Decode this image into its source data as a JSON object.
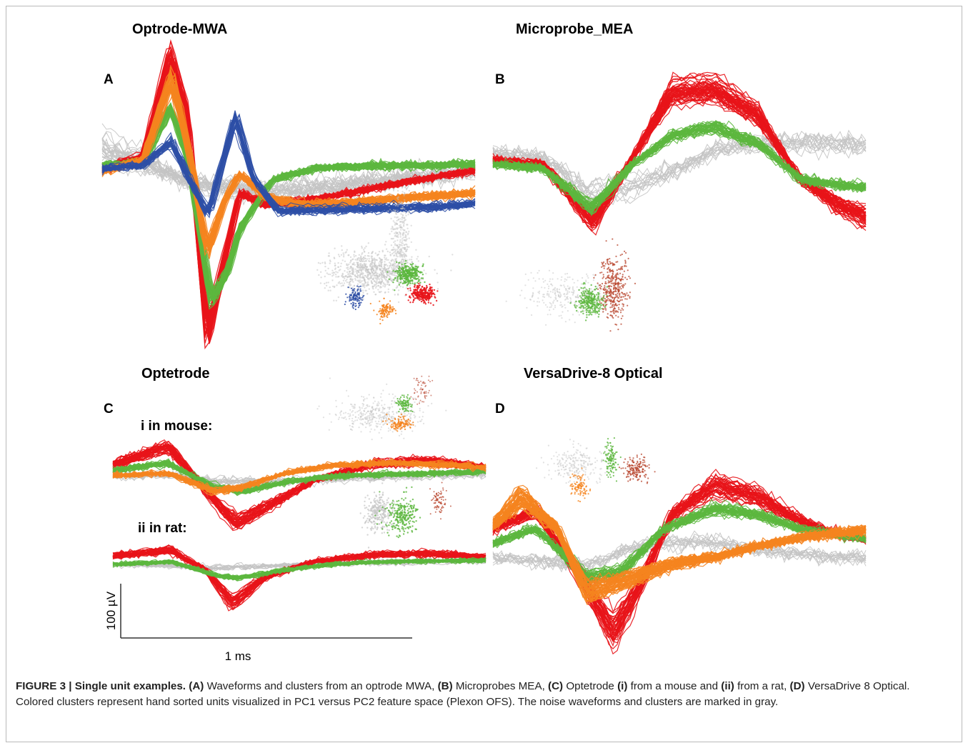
{
  "panels": {
    "a": {
      "letter": "A",
      "title": "Optrode-MWA"
    },
    "b": {
      "letter": "B",
      "title": "Microprobe_MEA"
    },
    "c": {
      "letter": "C",
      "title": "Optetrode",
      "sub_i": "i in mouse:",
      "sub_ii": "ii in rat:"
    },
    "d": {
      "letter": "D",
      "title": "VersaDrive-8 Optical"
    }
  },
  "scale_bar": {
    "vertical_label": "100 µV",
    "horizontal_label": "1 ms"
  },
  "caption": {
    "figure_label": "FIGURE 3 | Single unit examples.",
    "segments": [
      {
        "b": "(A)",
        "t": " Waveforms and clusters from an optrode MWA, "
      },
      {
        "b": "(B)",
        "t": " Microprobes MEA, "
      },
      {
        "b": "(C)",
        "t": " Optetrode "
      },
      {
        "b": "(i)",
        "t": " from a mouse and "
      },
      {
        "b": "(ii)",
        "t": " from a rat, "
      },
      {
        "b": "(D)",
        "t": " VersaDrive 8 Optical. Colored clusters represent hand sorted units visualized in PC1 versus PC2 feature space (Plexon OFS). The noise waveforms and clusters are marked in gray."
      }
    ]
  },
  "colors": {
    "red": "#e8141a",
    "orange": "#f5841f",
    "green": "#5cb73e",
    "blue": "#2e4fa6",
    "gray": "#c4c4c4",
    "darkred": "#b8452e"
  }
}
